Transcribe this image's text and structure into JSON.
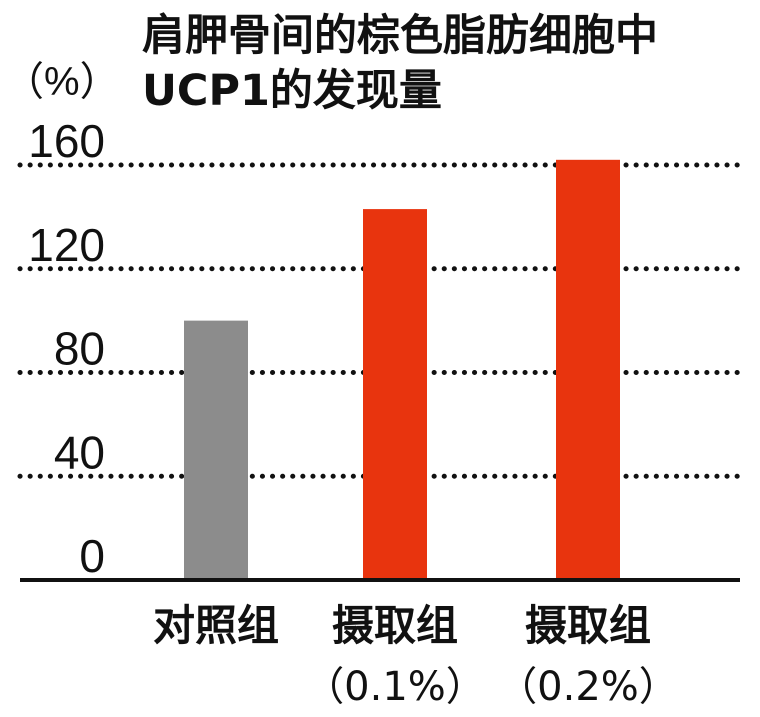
{
  "chart_data": {
    "type": "bar",
    "title_lines": [
      "肩胛骨间的棕色脂肪细胞中",
      "UCP1的发现量"
    ],
    "ylabel": "（%）",
    "yticks": [
      0,
      40,
      80,
      120,
      160
    ],
    "ylim": [
      0,
      160
    ],
    "grid": true,
    "categories": [
      {
        "name": "对照组",
        "sub": ""
      },
      {
        "name": "摄取组",
        "sub": "（0.1%）"
      },
      {
        "name": "摄取组",
        "sub": "（0.2%）"
      }
    ],
    "values": [
      100,
      143,
      162
    ],
    "colors": [
      "#8c8c8c",
      "#e8340e",
      "#e8340e"
    ]
  }
}
